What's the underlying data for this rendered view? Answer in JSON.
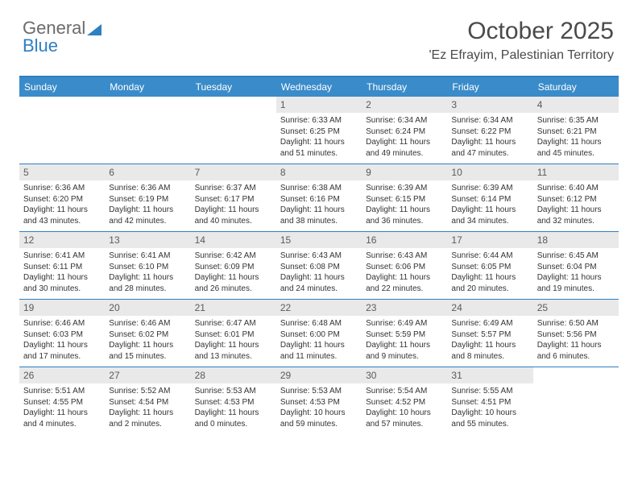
{
  "brand": {
    "word1": "General",
    "word2": "Blue"
  },
  "title": "October 2025",
  "location": "'Ez Efrayim, Palestinian Territory",
  "day_header_bg": "#3a8bc9",
  "accent_rule": "#2f7fc1",
  "days": [
    "Sunday",
    "Monday",
    "Tuesday",
    "Wednesday",
    "Thursday",
    "Friday",
    "Saturday"
  ],
  "weeks": [
    [
      {
        "blank": true
      },
      {
        "blank": true
      },
      {
        "blank": true
      },
      {
        "n": "1",
        "sr": "Sunrise: 6:33 AM",
        "ss": "Sunset: 6:25 PM",
        "dl1": "Daylight: 11 hours",
        "dl2": "and 51 minutes."
      },
      {
        "n": "2",
        "sr": "Sunrise: 6:34 AM",
        "ss": "Sunset: 6:24 PM",
        "dl1": "Daylight: 11 hours",
        "dl2": "and 49 minutes."
      },
      {
        "n": "3",
        "sr": "Sunrise: 6:34 AM",
        "ss": "Sunset: 6:22 PM",
        "dl1": "Daylight: 11 hours",
        "dl2": "and 47 minutes."
      },
      {
        "n": "4",
        "sr": "Sunrise: 6:35 AM",
        "ss": "Sunset: 6:21 PM",
        "dl1": "Daylight: 11 hours",
        "dl2": "and 45 minutes."
      }
    ],
    [
      {
        "n": "5",
        "sr": "Sunrise: 6:36 AM",
        "ss": "Sunset: 6:20 PM",
        "dl1": "Daylight: 11 hours",
        "dl2": "and 43 minutes."
      },
      {
        "n": "6",
        "sr": "Sunrise: 6:36 AM",
        "ss": "Sunset: 6:19 PM",
        "dl1": "Daylight: 11 hours",
        "dl2": "and 42 minutes."
      },
      {
        "n": "7",
        "sr": "Sunrise: 6:37 AM",
        "ss": "Sunset: 6:17 PM",
        "dl1": "Daylight: 11 hours",
        "dl2": "and 40 minutes."
      },
      {
        "n": "8",
        "sr": "Sunrise: 6:38 AM",
        "ss": "Sunset: 6:16 PM",
        "dl1": "Daylight: 11 hours",
        "dl2": "and 38 minutes."
      },
      {
        "n": "9",
        "sr": "Sunrise: 6:39 AM",
        "ss": "Sunset: 6:15 PM",
        "dl1": "Daylight: 11 hours",
        "dl2": "and 36 minutes."
      },
      {
        "n": "10",
        "sr": "Sunrise: 6:39 AM",
        "ss": "Sunset: 6:14 PM",
        "dl1": "Daylight: 11 hours",
        "dl2": "and 34 minutes."
      },
      {
        "n": "11",
        "sr": "Sunrise: 6:40 AM",
        "ss": "Sunset: 6:12 PM",
        "dl1": "Daylight: 11 hours",
        "dl2": "and 32 minutes."
      }
    ],
    [
      {
        "n": "12",
        "sr": "Sunrise: 6:41 AM",
        "ss": "Sunset: 6:11 PM",
        "dl1": "Daylight: 11 hours",
        "dl2": "and 30 minutes."
      },
      {
        "n": "13",
        "sr": "Sunrise: 6:41 AM",
        "ss": "Sunset: 6:10 PM",
        "dl1": "Daylight: 11 hours",
        "dl2": "and 28 minutes."
      },
      {
        "n": "14",
        "sr": "Sunrise: 6:42 AM",
        "ss": "Sunset: 6:09 PM",
        "dl1": "Daylight: 11 hours",
        "dl2": "and 26 minutes."
      },
      {
        "n": "15",
        "sr": "Sunrise: 6:43 AM",
        "ss": "Sunset: 6:08 PM",
        "dl1": "Daylight: 11 hours",
        "dl2": "and 24 minutes."
      },
      {
        "n": "16",
        "sr": "Sunrise: 6:43 AM",
        "ss": "Sunset: 6:06 PM",
        "dl1": "Daylight: 11 hours",
        "dl2": "and 22 minutes."
      },
      {
        "n": "17",
        "sr": "Sunrise: 6:44 AM",
        "ss": "Sunset: 6:05 PM",
        "dl1": "Daylight: 11 hours",
        "dl2": "and 20 minutes."
      },
      {
        "n": "18",
        "sr": "Sunrise: 6:45 AM",
        "ss": "Sunset: 6:04 PM",
        "dl1": "Daylight: 11 hours",
        "dl2": "and 19 minutes."
      }
    ],
    [
      {
        "n": "19",
        "sr": "Sunrise: 6:46 AM",
        "ss": "Sunset: 6:03 PM",
        "dl1": "Daylight: 11 hours",
        "dl2": "and 17 minutes."
      },
      {
        "n": "20",
        "sr": "Sunrise: 6:46 AM",
        "ss": "Sunset: 6:02 PM",
        "dl1": "Daylight: 11 hours",
        "dl2": "and 15 minutes."
      },
      {
        "n": "21",
        "sr": "Sunrise: 6:47 AM",
        "ss": "Sunset: 6:01 PM",
        "dl1": "Daylight: 11 hours",
        "dl2": "and 13 minutes."
      },
      {
        "n": "22",
        "sr": "Sunrise: 6:48 AM",
        "ss": "Sunset: 6:00 PM",
        "dl1": "Daylight: 11 hours",
        "dl2": "and 11 minutes."
      },
      {
        "n": "23",
        "sr": "Sunrise: 6:49 AM",
        "ss": "Sunset: 5:59 PM",
        "dl1": "Daylight: 11 hours",
        "dl2": "and 9 minutes."
      },
      {
        "n": "24",
        "sr": "Sunrise: 6:49 AM",
        "ss": "Sunset: 5:57 PM",
        "dl1": "Daylight: 11 hours",
        "dl2": "and 8 minutes."
      },
      {
        "n": "25",
        "sr": "Sunrise: 6:50 AM",
        "ss": "Sunset: 5:56 PM",
        "dl1": "Daylight: 11 hours",
        "dl2": "and 6 minutes."
      }
    ],
    [
      {
        "n": "26",
        "sr": "Sunrise: 5:51 AM",
        "ss": "Sunset: 4:55 PM",
        "dl1": "Daylight: 11 hours",
        "dl2": "and 4 minutes."
      },
      {
        "n": "27",
        "sr": "Sunrise: 5:52 AM",
        "ss": "Sunset: 4:54 PM",
        "dl1": "Daylight: 11 hours",
        "dl2": "and 2 minutes."
      },
      {
        "n": "28",
        "sr": "Sunrise: 5:53 AM",
        "ss": "Sunset: 4:53 PM",
        "dl1": "Daylight: 11 hours",
        "dl2": "and 0 minutes."
      },
      {
        "n": "29",
        "sr": "Sunrise: 5:53 AM",
        "ss": "Sunset: 4:53 PM",
        "dl1": "Daylight: 10 hours",
        "dl2": "and 59 minutes."
      },
      {
        "n": "30",
        "sr": "Sunrise: 5:54 AM",
        "ss": "Sunset: 4:52 PM",
        "dl1": "Daylight: 10 hours",
        "dl2": "and 57 minutes."
      },
      {
        "n": "31",
        "sr": "Sunrise: 5:55 AM",
        "ss": "Sunset: 4:51 PM",
        "dl1": "Daylight: 10 hours",
        "dl2": "and 55 minutes."
      },
      {
        "blank": true
      }
    ]
  ]
}
